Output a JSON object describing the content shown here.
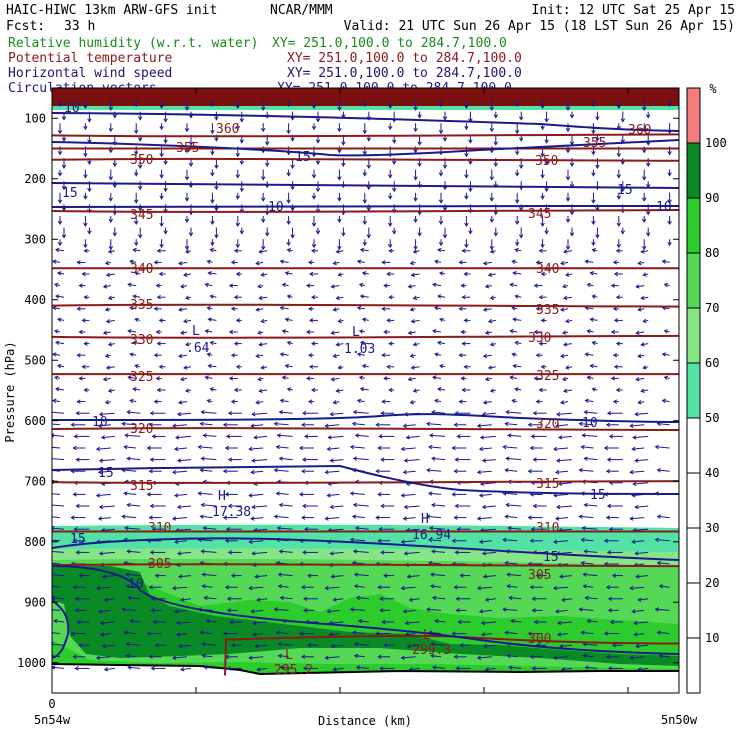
{
  "header": {
    "model": "HAIC-HIWC 13km ARW-GFS init",
    "center": "NCAR/MMM",
    "init": "Init: 12 UTC Sat 25 Apr 15",
    "fcst_label": "Fcst:",
    "fcst_value": "33 h",
    "valid": "Valid: 21 UTC Sun 26 Apr 15 (18 LST Sun 26 Apr 15)"
  },
  "fields": [
    {
      "name": "Relative humidity (w.r.t. water)",
      "xy": "XY= 251.0,100.0 to 284.7,100.0",
      "color": "#1a8a1a"
    },
    {
      "name": "Potential temperature",
      "xy": "XY= 251.0,100.0 to 284.7,100.0",
      "color": "#8b1a1a"
    },
    {
      "name": "Horizontal wind speed",
      "xy": "XY= 251.0,100.0 to 284.7,100.0",
      "color": "#1a1a6e"
    },
    {
      "name": "Circulation vectors",
      "xy": "XY= 251.0,100.0 to 284.7,100.0",
      "color": "#1a1a8c"
    }
  ],
  "chart_data": {
    "type": "heatmap",
    "title": "",
    "xlabel": "Distance (km)",
    "ylabel": "Pressure (hPa)",
    "x_tick_labels": [
      "0"
    ],
    "x_left_label": "5n54w",
    "x_right_label": "5n50w",
    "y_ticks": [
      100,
      200,
      300,
      400,
      500,
      600,
      700,
      800,
      900,
      1000
    ],
    "ylim": [
      1050,
      50
    ],
    "colorbar": {
      "unit": "%",
      "ticks": [
        10,
        20,
        30,
        40,
        50,
        60,
        70,
        80,
        90,
        100
      ],
      "bands": [
        {
          "from": 50,
          "to": 60,
          "color": "#53e2a6"
        },
        {
          "from": 60,
          "to": 70,
          "color": "#86e686"
        },
        {
          "from": 70,
          "to": 80,
          "color": "#55d855"
        },
        {
          "from": 80,
          "to": 90,
          "color": "#2ccc2c"
        },
        {
          "from": 90,
          "to": 100,
          "color": "#0a8a24"
        },
        {
          "from": 100,
          "to": 110,
          "color": "#f47c7c"
        }
      ]
    },
    "theta_contours": [
      {
        "label": "360",
        "p": 130
      },
      {
        "label": "355",
        "p": 150
      },
      {
        "label": "350",
        "p": 167
      },
      {
        "label": "345",
        "p": 255
      },
      {
        "label": "340",
        "p": 348
      },
      {
        "label": "335",
        "p": 408
      },
      {
        "label": "330",
        "p": 463
      },
      {
        "label": "325",
        "p": 523
      },
      {
        "label": "320",
        "p": 612
      },
      {
        "label": "315",
        "p": 703
      },
      {
        "label": "310",
        "p": 783
      },
      {
        "label": "305",
        "p": 837
      },
      {
        "label": "300",
        "p": 955
      }
    ],
    "wind_labels": [
      "10",
      "15",
      "10",
      "15",
      "10",
      "15",
      "15",
      "10",
      "10"
    ],
    "extrema": [
      {
        "type": "L",
        "value": ".64"
      },
      {
        "type": "L",
        "value": "1.03"
      },
      {
        "type": "H",
        "value": "17.38"
      },
      {
        "type": "H",
        "value": "16.94"
      },
      {
        "type": "L",
        "value": "299.3"
      },
      {
        "type": "L",
        "value": "295.2"
      }
    ]
  }
}
